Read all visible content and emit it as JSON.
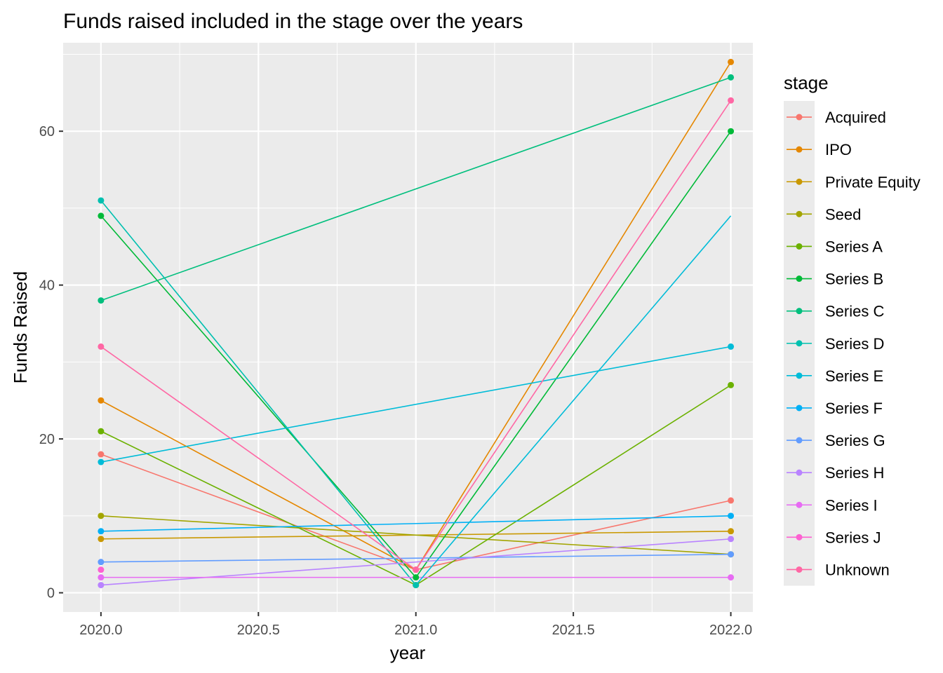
{
  "chart_data": {
    "type": "line",
    "title": "Funds raised included in the stage over the years",
    "xlabel": "year",
    "ylabel": "Funds Raised",
    "x": [
      2020,
      2021,
      2022
    ],
    "xlim": [
      2019.88,
      2022.07
    ],
    "ylim": [
      -2.5,
      71.5
    ],
    "x_ticks": [
      2020.0,
      2020.5,
      2021.0,
      2021.5,
      2022.0
    ],
    "x_tick_labels": [
      "2020.0",
      "2020.5",
      "2021.0",
      "2021.5",
      "2022.0"
    ],
    "y_ticks": [
      0,
      20,
      40,
      60
    ],
    "y_tick_labels": [
      "0",
      "20",
      "40",
      "60"
    ],
    "grid": true,
    "legend": {
      "title": "stage",
      "position": "right"
    },
    "series": [
      {
        "name": "Acquired",
        "color": "#F8766D",
        "points": [
          [
            2020,
            18
          ],
          [
            2021,
            3
          ],
          [
            2022,
            12
          ]
        ]
      },
      {
        "name": "IPO",
        "color": "#E58700",
        "points": [
          [
            2020,
            25
          ],
          [
            2021,
            3
          ],
          [
            2022,
            69
          ]
        ]
      },
      {
        "name": "Private Equity",
        "color": "#C99800",
        "points": [
          [
            2020,
            7
          ],
          [
            2022,
            8
          ]
        ]
      },
      {
        "name": "Seed",
        "color": "#A3A500",
        "points": [
          [
            2020,
            10
          ],
          [
            2022,
            5
          ]
        ]
      },
      {
        "name": "Series A",
        "color": "#6BB100",
        "points": [
          [
            2020,
            21
          ],
          [
            2021,
            1
          ],
          [
            2022,
            27
          ]
        ]
      },
      {
        "name": "Series B",
        "color": "#00BA38",
        "points": [
          [
            2020,
            49
          ],
          [
            2021,
            2
          ],
          [
            2022,
            60
          ]
        ]
      },
      {
        "name": "Series C",
        "color": "#00BF7D",
        "points": [
          [
            2020,
            38
          ],
          [
            2022,
            67
          ]
        ]
      },
      {
        "name": "Series D",
        "color": "#00C0AF",
        "points": [
          [
            2020,
            51
          ],
          [
            2021,
            1
          ]
        ]
      },
      {
        "name": "Series E",
        "color": "#00BCD8",
        "points": [
          [
            2020,
            17
          ],
          [
            2022,
            32
          ]
        ]
      },
      {
        "name": "Series F",
        "color": "#00B0F6",
        "points": [
          [
            2020,
            8
          ],
          [
            2022,
            10
          ]
        ]
      },
      {
        "name": "Series G",
        "color": "#619CFF",
        "points": [
          [
            2020,
            4
          ],
          [
            2022,
            5
          ]
        ]
      },
      {
        "name": "Series H",
        "color": "#B983FF",
        "points": [
          [
            2020,
            1
          ],
          [
            2022,
            7
          ]
        ]
      },
      {
        "name": "Series I",
        "color": "#E76BF3",
        "points": [
          [
            2020,
            2
          ],
          [
            2022,
            2
          ]
        ]
      },
      {
        "name": "Series J",
        "color": "#FD61D1",
        "points": [
          [
            2020,
            3
          ]
        ]
      },
      {
        "name": "Unknown",
        "color": "#FF67A4",
        "points": [
          [
            2020,
            32
          ],
          [
            2021,
            3
          ],
          [
            2022,
            64
          ]
        ]
      }
    ],
    "extra_segments": [
      {
        "color": "#00BCD8",
        "points": [
          [
            2021,
            1
          ],
          [
            2022,
            49
          ]
        ]
      }
    ],
    "colors": {
      "panel_bg": "#EBEBEB",
      "grid_major": "#FFFFFF",
      "axis_text": "#4D4D4D",
      "title_text": "#000000"
    }
  }
}
